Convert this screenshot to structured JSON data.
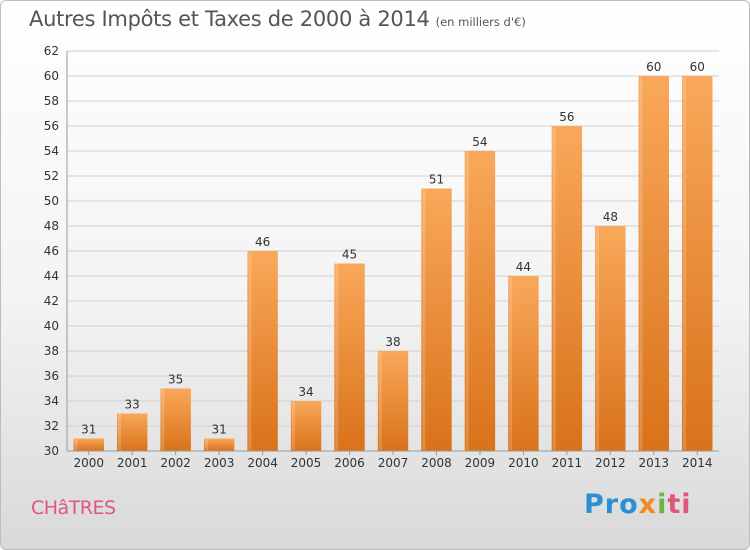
{
  "header": {
    "title": "Autres Impôts et Taxes de 2000 à 2014",
    "subtitle": "(en milliers d'€)"
  },
  "footer": {
    "commune": "CHâTRES",
    "logo": [
      "Pro",
      "x",
      "i",
      "ti"
    ]
  },
  "colors": {
    "bar_light": "#f9a85a",
    "bar_dark": "#d9721a",
    "grid": "#d0d0d0",
    "commune": "#e0567c"
  },
  "chart_data": {
    "type": "bar",
    "categories": [
      "2000",
      "2001",
      "2002",
      "2003",
      "2004",
      "2005",
      "2006",
      "2007",
      "2008",
      "2009",
      "2010",
      "2011",
      "2012",
      "2013",
      "2014"
    ],
    "values": [
      31,
      33,
      35,
      31,
      46,
      34,
      45,
      38,
      51,
      54,
      44,
      56,
      48,
      60,
      60
    ],
    "title": "Autres Impôts et Taxes de 2000 à 2014",
    "subtitle": "(en milliers d'€)",
    "xlabel": "",
    "ylabel": "",
    "ylim": [
      30,
      62
    ],
    "yticks": [
      30,
      32,
      34,
      36,
      38,
      40,
      42,
      44,
      46,
      48,
      50,
      52,
      54,
      56,
      58,
      60,
      62
    ],
    "grid": true,
    "legend": "none"
  }
}
